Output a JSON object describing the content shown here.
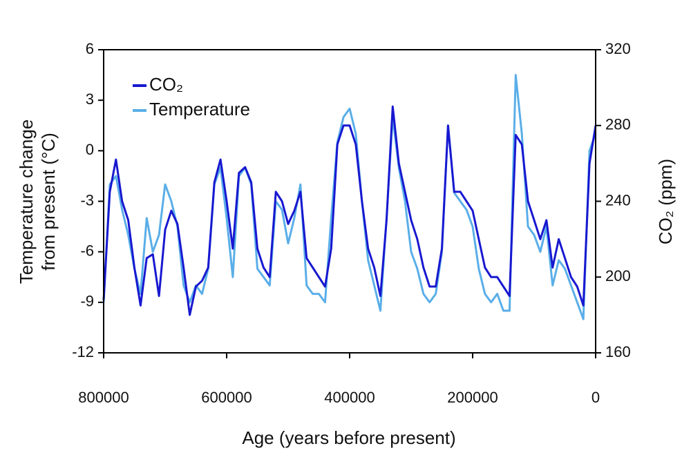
{
  "chart_data": {
    "type": "line",
    "xlabel": "Age (years before present)",
    "ylabel": [
      "Temperature change",
      "from present (°C)"
    ],
    "y2label": "CO₂ (ppm)",
    "xlim": [
      800000,
      0
    ],
    "xticks": [
      800000,
      600000,
      400000,
      200000,
      0
    ],
    "ylim": [
      -12,
      6
    ],
    "yticks": [
      6,
      3,
      0,
      -3,
      -6,
      -9,
      -12
    ],
    "y2lim": [
      160,
      320
    ],
    "y2ticks": [
      160,
      200,
      240,
      280,
      320
    ],
    "legend": "upper left",
    "x": [
      800000,
      790000,
      780000,
      770000,
      760000,
      750000,
      740000,
      730000,
      720000,
      710000,
      700000,
      690000,
      680000,
      670000,
      660000,
      650000,
      640000,
      630000,
      620000,
      610000,
      600000,
      590000,
      580000,
      570000,
      560000,
      550000,
      540000,
      530000,
      520000,
      510000,
      500000,
      490000,
      480000,
      470000,
      460000,
      450000,
      440000,
      430000,
      420000,
      410000,
      400000,
      390000,
      380000,
      370000,
      360000,
      350000,
      340000,
      330000,
      320000,
      310000,
      300000,
      290000,
      280000,
      270000,
      260000,
      250000,
      240000,
      230000,
      220000,
      210000,
      200000,
      190000,
      180000,
      170000,
      160000,
      150000,
      140000,
      130000,
      120000,
      110000,
      100000,
      90000,
      80000,
      70000,
      60000,
      50000,
      40000,
      30000,
      20000,
      10000,
      0
    ],
    "series": [
      {
        "name": "CO₂",
        "color": "#1818d0",
        "axis": "y2",
        "values": [
          188,
          245,
          262,
          240,
          230,
          205,
          185,
          210,
          212,
          190,
          225,
          235,
          228,
          205,
          180,
          195,
          198,
          205,
          250,
          262,
          240,
          215,
          255,
          258,
          250,
          215,
          205,
          200,
          245,
          240,
          228,
          235,
          245,
          210,
          205,
          200,
          195,
          215,
          270,
          280,
          280,
          270,
          240,
          215,
          205,
          190,
          230,
          290,
          260,
          245,
          230,
          220,
          205,
          195,
          195,
          215,
          280,
          245,
          245,
          240,
          235,
          220,
          205,
          200,
          200,
          195,
          190,
          275,
          270,
          240,
          230,
          220,
          230,
          205,
          220,
          210,
          200,
          195,
          185,
          260,
          280
        ]
      },
      {
        "name": "Temperature",
        "color": "#5aaee8",
        "values": [
          -9,
          -2,
          -1.5,
          -3.5,
          -5,
          -7,
          -8.5,
          -4,
          -6,
          -5,
          -2,
          -3,
          -4.5,
          -8,
          -9,
          -8,
          -8.5,
          -7,
          -2,
          -1,
          -4,
          -7.5,
          -1.5,
          -1,
          -2,
          -7,
          -7.5,
          -8,
          -3,
          -3.5,
          -5.5,
          -4,
          -2,
          -8,
          -8.5,
          -8.5,
          -9,
          -4,
          0.5,
          2,
          2.5,
          1,
          -3,
          -6.5,
          -8,
          -9.5,
          -4,
          2,
          -1,
          -3,
          -6,
          -7,
          -8.5,
          -9,
          -8.5,
          -6,
          1.5,
          -2.5,
          -3,
          -3.5,
          -4.5,
          -7,
          -8.5,
          -9,
          -8.5,
          -9.5,
          -9.5,
          4.5,
          1,
          -4.5,
          -5,
          -6,
          -4.5,
          -8,
          -6.5,
          -7,
          -8,
          -9,
          -10,
          0,
          1
        ]
      }
    ]
  }
}
